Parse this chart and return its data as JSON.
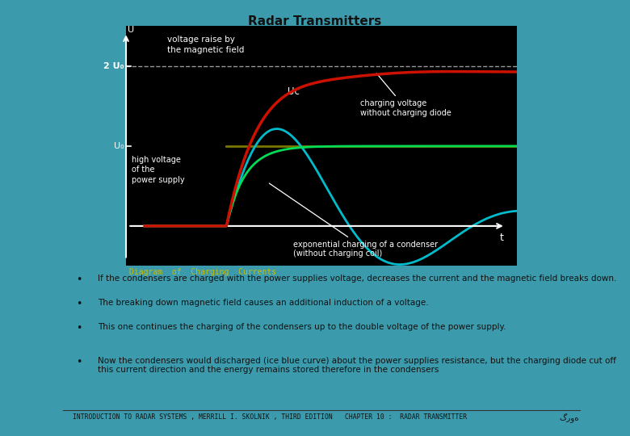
{
  "title": "Radar Transmitters",
  "bg_color": "#3B9BAD",
  "chart_bg": "#000000",
  "title_color": "#111111",
  "bullet_points": [
    "If the condensers are charged with the power supplies voltage, decreases the current and the magnetic field breaks down.",
    "The breaking down magnetic field causes an additional induction of a voltage.",
    "This one continues the charging of the condensers up to the double voltage of the power supply.",
    "Now the condensers would discharged (ice blue curve) about the power supplies resistance, but the charging diode cut off this current direction and the energy remains stored therefore in the condensers"
  ],
  "footer_left": "INTRODUCTION TO RADAR SYSTEMS , MERRILL I. SKOLNIK , THIRD EDITION",
  "footer_center": "CHAPTER 10 :  RADAR TRANSMITTER",
  "footer_right": "گروه",
  "chart_caption": "Diagram  of  Charging  Currents",
  "label_2U0": "2 U₀",
  "label_U0": "U₀",
  "label_U": "U",
  "label_Uc": "Uᴄ",
  "label_t": "t",
  "ann_voltage_raise": "voltage raise by\nthe magnetic field",
  "ann_high_voltage": "high voltage\nof the\npower supply",
  "ann_charging_voltage": "charging voltage\nwithout charging diode",
  "ann_exponential": "exponential charging of a condenser\n(without charging coil)",
  "red_color": "#CC1100",
  "cyan_color": "#00BBCC",
  "green_color": "#00DD55",
  "olive_color": "#777700",
  "dashed_color": "#999999",
  "white": "#FFFFFF",
  "yellow_caption_color": "#CCBB00",
  "bullet_color": "#111111",
  "text_color": "#111111"
}
